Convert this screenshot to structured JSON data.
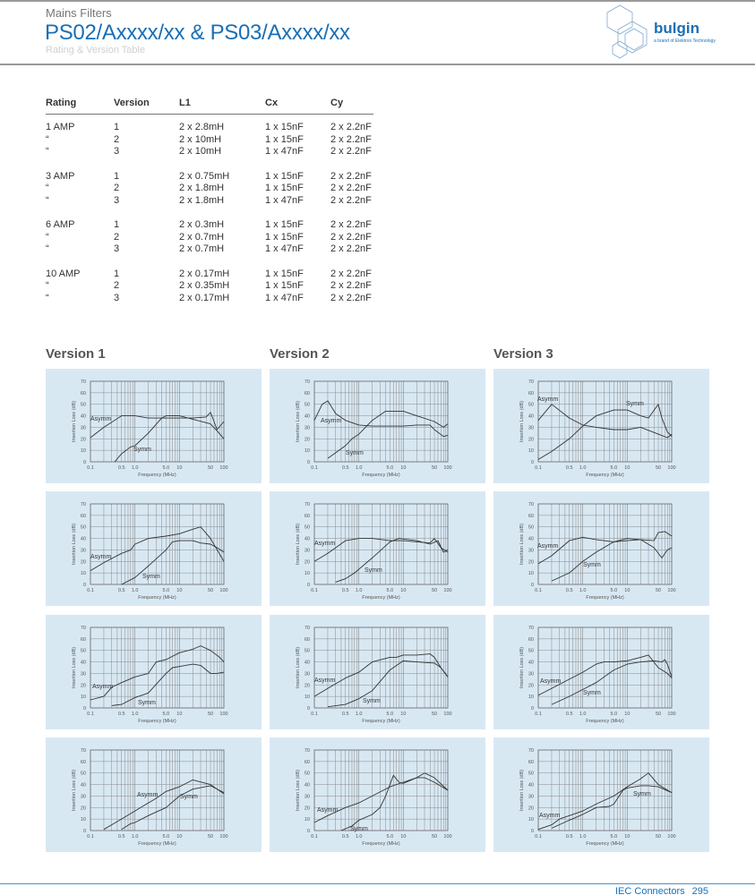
{
  "header": {
    "subtitle": "Mains Filters",
    "title": "PS02/Axxxx/xx & PS03/Axxxx/xx",
    "caption": "Rating & Version Table"
  },
  "logo": {
    "name": "bulgin",
    "tagline": "a brand of Elektron Technology"
  },
  "table": {
    "columns": [
      "Rating",
      "Version",
      "L1",
      "Cx",
      "Cy"
    ],
    "rows": [
      [
        "1 AMP",
        "1",
        "2 x 2.8mH",
        "1 x 15nF",
        "2 x 2.2nF"
      ],
      [
        "“",
        "2",
        "2 x 10mH",
        "1 x 15nF",
        "2 x 2.2nF"
      ],
      [
        "“",
        "3",
        "2 x 10mH",
        "1 x 47nF",
        "2 x 2.2nF"
      ],
      [
        "3 AMP",
        "1",
        "2 x 0.75mH",
        "1 x 15nF",
        "2 x 2.2nF"
      ],
      [
        "“",
        "2",
        "2 x 1.8mH",
        "1 x 15nF",
        "2 x 2.2nF"
      ],
      [
        "“",
        "3",
        "2 x 1.8mH",
        "1 x 47nF",
        "2 x 2.2nF"
      ],
      [
        "6 AMP",
        "1",
        "2 x 0.3mH",
        "1 x 15nF",
        "2 x 2.2nF"
      ],
      [
        "“",
        "2",
        "2 x 0.7mH",
        "1 x 15nF",
        "2 x 2.2nF"
      ],
      [
        "“",
        "3",
        "2 x 0.7mH",
        "1 x 47nF",
        "2 x 2.2nF"
      ],
      [
        "10 AMP",
        "1",
        "2 x 0.17mH",
        "1 x 15nF",
        "2 x 2.2nF"
      ],
      [
        "“",
        "2",
        "2 x 0.35mH",
        "1 x 15nF",
        "2 x 2.2nF"
      ],
      [
        "“",
        "3",
        "2 x 0.17mH",
        "1 x 47nF",
        "2 x 2.2nF"
      ]
    ]
  },
  "version_headings": [
    "Version 1",
    "Version 2",
    "Version 3"
  ],
  "colors": {
    "brand": "#1a6fb5",
    "panel": "#d8e8f3",
    "grid": "#8a8a8a",
    "curve": "#333333"
  },
  "chart_common": {
    "type": "line",
    "xlabel": "Frequency (MHz)",
    "ylabel": "Insertion Loss (dB)",
    "xscale": "log",
    "xlim": [
      0.1,
      100
    ],
    "ylim": [
      0,
      70
    ],
    "xticks": [
      "0.1",
      "0.5",
      "1.0",
      "5.0",
      "10",
      "50",
      "100"
    ],
    "yticks": [
      "0",
      "10",
      "20",
      "30",
      "40",
      "50",
      "60",
      "70"
    ],
    "grid": true
  },
  "chart_data": [
    {
      "type": "line",
      "rating": "1 AMP",
      "version": "Version 1",
      "series": [
        {
          "name": "Asymm",
          "x": [
            0.1,
            0.2,
            0.5,
            1,
            2,
            5,
            10,
            20,
            40,
            50,
            60,
            70,
            100
          ],
          "y": [
            21,
            30,
            40,
            40,
            38,
            38,
            38,
            38,
            39,
            43,
            35,
            28,
            35
          ]
        },
        {
          "name": "Symm",
          "x": [
            0.35,
            0.5,
            0.8,
            1,
            2,
            4,
            5,
            10,
            20,
            50,
            70,
            100
          ],
          "y": [
            0,
            7,
            13,
            14,
            25,
            38,
            40,
            40,
            37,
            33,
            27,
            20
          ]
        }
      ]
    },
    {
      "type": "line",
      "rating": "1 AMP",
      "version": "Version 2",
      "series": [
        {
          "name": "Asymm",
          "x": [
            0.1,
            0.15,
            0.2,
            0.3,
            0.5,
            1,
            2,
            5,
            10,
            20,
            40,
            50,
            80,
            100
          ],
          "y": [
            36,
            50,
            53,
            42,
            36,
            32,
            31,
            31,
            31,
            32,
            32,
            28,
            22,
            23
          ]
        },
        {
          "name": "Symm",
          "x": [
            0.2,
            0.5,
            0.7,
            1,
            2,
            4,
            10,
            20,
            50,
            80,
            100
          ],
          "y": [
            3,
            14,
            20,
            24,
            36,
            44,
            44,
            40,
            35,
            30,
            33
          ]
        }
      ]
    },
    {
      "type": "line",
      "rating": "1 AMP",
      "version": "Version 3",
      "series": [
        {
          "name": "Asymm",
          "x": [
            0.1,
            0.2,
            0.5,
            1,
            2,
            5,
            10,
            20,
            50,
            80,
            100
          ],
          "y": [
            36,
            50,
            38,
            32,
            30,
            28,
            28,
            30,
            24,
            21,
            24
          ]
        },
        {
          "name": "Symm",
          "x": [
            0.1,
            0.2,
            0.5,
            1,
            2,
            5,
            10,
            20,
            30,
            50,
            60,
            80,
            100
          ],
          "y": [
            2,
            9,
            20,
            31,
            40,
            45,
            45,
            40,
            38,
            50,
            38,
            26,
            22
          ]
        }
      ]
    },
    {
      "type": "line",
      "rating": "3 AMP",
      "version": "Version 1",
      "series": [
        {
          "name": "Asymm",
          "x": [
            0.1,
            0.2,
            0.5,
            0.8,
            1,
            2,
            5,
            10,
            20,
            30,
            50,
            100
          ],
          "y": [
            12,
            19,
            27,
            30,
            35,
            40,
            42,
            44,
            48,
            50,
            40,
            20
          ]
        },
        {
          "name": "Symm",
          "x": [
            0.5,
            1,
            2,
            5,
            7,
            10,
            20,
            30,
            50,
            70,
            100
          ],
          "y": [
            0,
            6,
            16,
            30,
            37,
            38,
            38,
            36,
            35,
            32,
            28
          ]
        }
      ]
    },
    {
      "type": "line",
      "rating": "3 AMP",
      "version": "Version 2",
      "series": [
        {
          "name": "Asymm",
          "x": [
            0.1,
            0.2,
            0.5,
            1,
            2,
            5,
            10,
            20,
            40,
            50,
            70,
            100
          ],
          "y": [
            20,
            27,
            38,
            40,
            40,
            38,
            38,
            37,
            36,
            40,
            32,
            28
          ]
        },
        {
          "name": "Symm",
          "x": [
            0.3,
            0.5,
            0.8,
            2,
            5,
            8,
            20,
            40,
            60,
            80,
            100
          ],
          "y": [
            2,
            5,
            10,
            23,
            37,
            40,
            38,
            35,
            38,
            28,
            30
          ]
        }
      ]
    },
    {
      "type": "line",
      "rating": "3 AMP",
      "version": "Version 3",
      "series": [
        {
          "name": "Asymm",
          "x": [
            0.1,
            0.2,
            0.5,
            1,
            2,
            5,
            10,
            20,
            40,
            50,
            70,
            100
          ],
          "y": [
            18,
            25,
            38,
            41,
            39,
            37,
            38,
            39,
            38,
            45,
            46,
            42
          ]
        },
        {
          "name": "Symm",
          "x": [
            0.2,
            0.5,
            1,
            2,
            5,
            10,
            20,
            40,
            60,
            80,
            100
          ],
          "y": [
            3,
            10,
            20,
            28,
            37,
            40,
            39,
            32,
            23,
            30,
            32
          ]
        }
      ]
    },
    {
      "type": "line",
      "rating": "6 AMP",
      "version": "Version 1",
      "series": [
        {
          "name": "Asymm",
          "x": [
            0.1,
            0.2,
            0.3,
            0.5,
            1,
            2,
            3,
            5,
            10,
            20,
            30,
            50,
            80,
            100
          ],
          "y": [
            7,
            10,
            18,
            22,
            27,
            30,
            40,
            42,
            48,
            51,
            54,
            50,
            44,
            40
          ]
        },
        {
          "name": "Symm",
          "x": [
            0.3,
            0.5,
            1,
            2,
            5,
            7,
            10,
            20,
            30,
            50,
            70,
            100
          ],
          "y": [
            2,
            3,
            9,
            13,
            30,
            35,
            36,
            38,
            37,
            30,
            30,
            31
          ]
        }
      ]
    },
    {
      "type": "line",
      "rating": "6 AMP",
      "version": "Version 2",
      "series": [
        {
          "name": "Asymm",
          "x": [
            0.1,
            0.2,
            0.5,
            1,
            2,
            5,
            7,
            10,
            20,
            40,
            50,
            70,
            100
          ],
          "y": [
            10,
            17,
            26,
            31,
            40,
            44,
            44,
            46,
            46,
            47,
            44,
            35,
            27
          ]
        },
        {
          "name": "Symm",
          "x": [
            0.2,
            0.5,
            1,
            2,
            5,
            10,
            20,
            50,
            70,
            100
          ],
          "y": [
            1,
            3,
            8,
            15,
            33,
            41,
            40,
            39,
            35,
            27
          ]
        }
      ]
    },
    {
      "type": "line",
      "rating": "6 AMP",
      "version": "Version 3",
      "series": [
        {
          "name": "Asymm",
          "x": [
            0.1,
            0.2,
            0.5,
            1,
            2,
            3,
            5,
            10,
            20,
            30,
            50,
            80,
            100
          ],
          "y": [
            11,
            17,
            25,
            31,
            38,
            40,
            40,
            41,
            44,
            46,
            35,
            30,
            26
          ]
        },
        {
          "name": "Symm",
          "x": [
            0.2,
            0.5,
            1,
            2,
            5,
            10,
            20,
            40,
            60,
            70,
            80,
            100
          ],
          "y": [
            3,
            10,
            16,
            22,
            33,
            38,
            40,
            41,
            40,
            42,
            38,
            27
          ]
        }
      ]
    },
    {
      "type": "line",
      "rating": "10 AMP",
      "version": "Version 1",
      "series": [
        {
          "name": "Asymm",
          "x": [
            0.2,
            0.5,
            1,
            2,
            3,
            5,
            10,
            20,
            50,
            100
          ],
          "y": [
            1,
            10,
            17,
            24,
            28,
            34,
            38,
            44,
            40,
            32
          ]
        },
        {
          "name": "Symm",
          "x": [
            0.5,
            0.8,
            1,
            2,
            5,
            10,
            20,
            50,
            100
          ],
          "y": [
            1,
            6,
            7,
            13,
            20,
            30,
            36,
            39,
            33
          ]
        }
      ]
    },
    {
      "type": "line",
      "rating": "10 AMP",
      "version": "Version 2",
      "series": [
        {
          "name": "Asymm",
          "x": [
            0.1,
            0.2,
            0.5,
            1,
            2,
            5,
            10,
            20,
            30,
            50,
            100
          ],
          "y": [
            7,
            13,
            20,
            24,
            30,
            38,
            42,
            46,
            50,
            46,
            35
          ]
        },
        {
          "name": "Symm",
          "x": [
            0.4,
            0.7,
            1,
            2,
            3,
            4,
            5,
            6,
            8,
            10,
            20,
            30,
            50,
            100
          ],
          "y": [
            0,
            4,
            9,
            14,
            20,
            30,
            40,
            48,
            42,
            41,
            46,
            46,
            42,
            35
          ]
        }
      ]
    },
    {
      "type": "line",
      "rating": "10 AMP",
      "version": "Version 3",
      "series": [
        {
          "name": "Asymm",
          "x": [
            0.1,
            0.2,
            0.3,
            0.5,
            1,
            2,
            5,
            10,
            20,
            30,
            50,
            100
          ],
          "y": [
            1,
            5,
            10,
            13,
            17,
            23,
            30,
            38,
            45,
            50,
            40,
            33
          ]
        },
        {
          "name": "Symm",
          "x": [
            0.2,
            0.5,
            1,
            2,
            4,
            5,
            8,
            10,
            20,
            30,
            50,
            100
          ],
          "y": [
            2,
            9,
            14,
            20,
            21,
            23,
            35,
            37,
            39,
            39,
            38,
            33
          ]
        }
      ]
    }
  ],
  "footer": {
    "section": "IEC Connectors",
    "page": "295"
  }
}
